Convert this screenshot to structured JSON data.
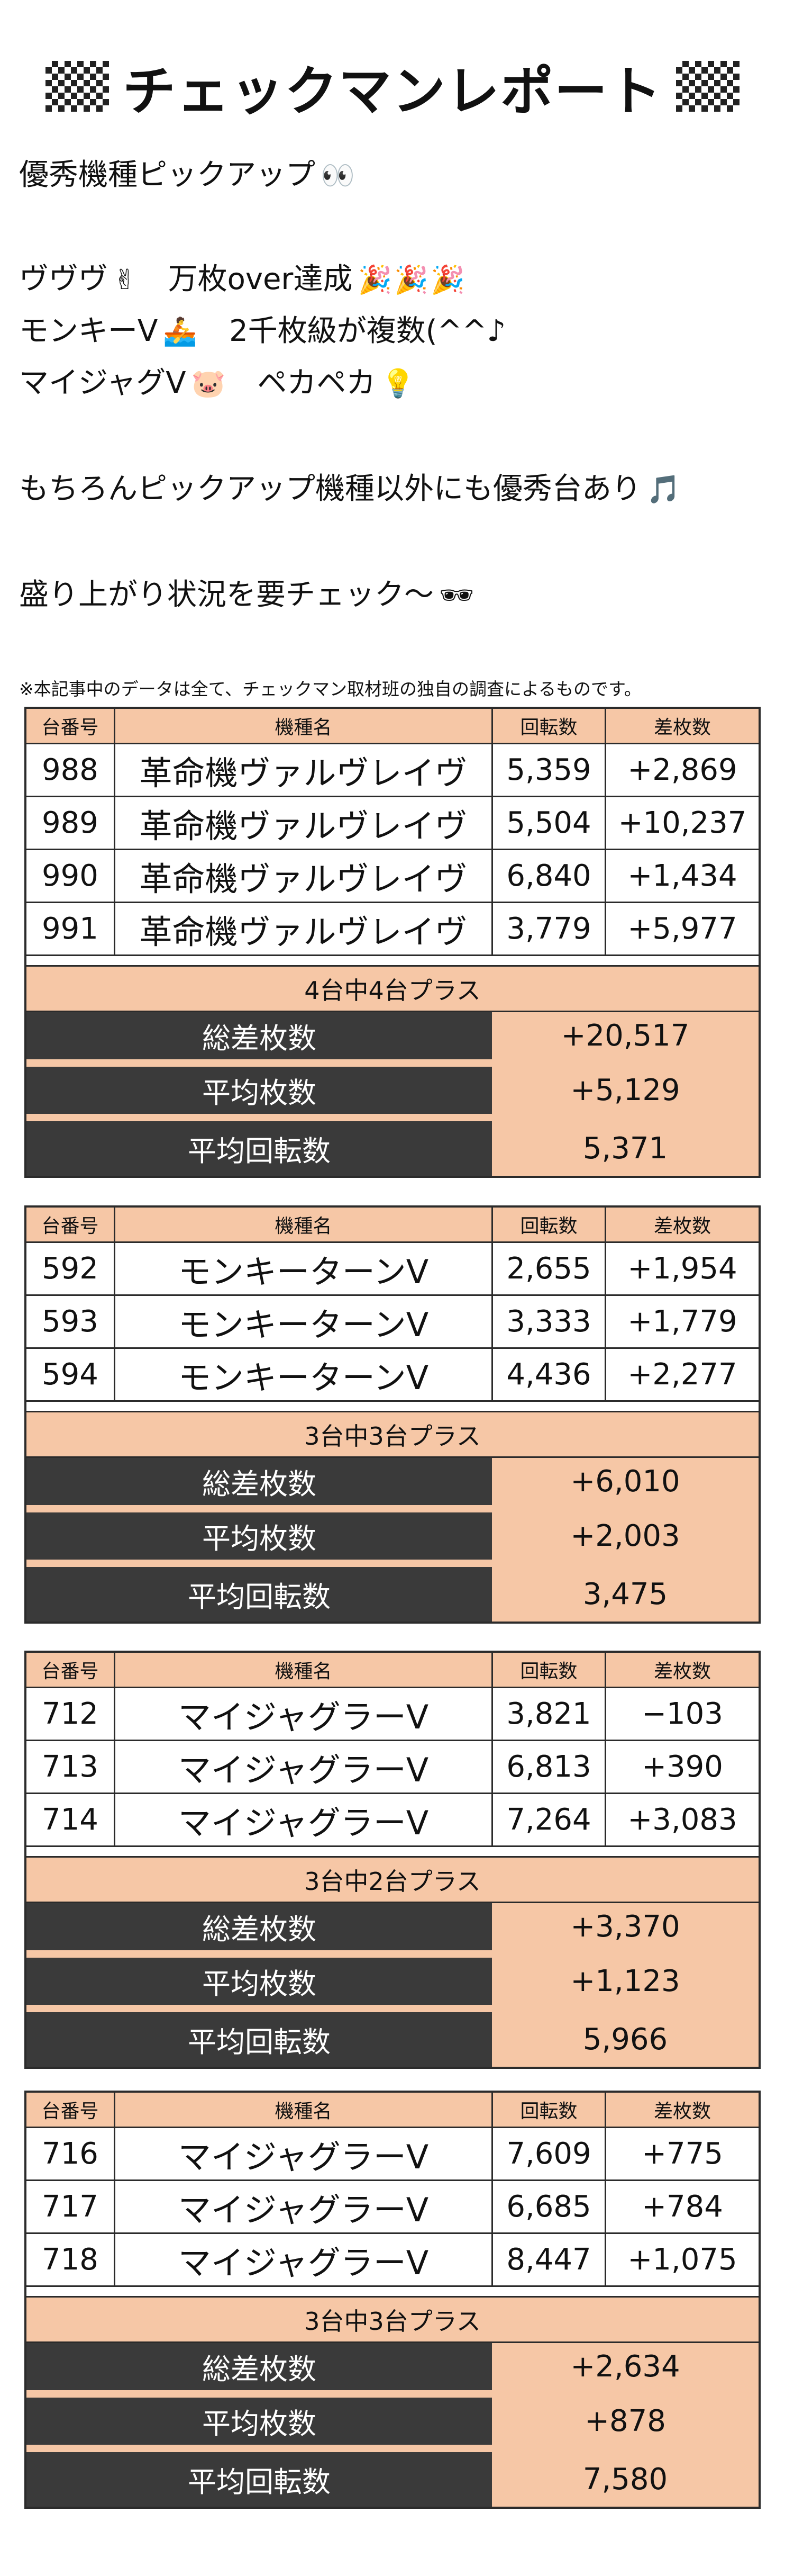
{
  "header": {
    "title": "チェックマンレポート",
    "flag_icon": "checkered-flag"
  },
  "intro": {
    "pickup_heading": "優秀機種ピックアップ",
    "pickup_emoji": "👀",
    "line_vuvuvu": "ヴヴヴ",
    "line_vuvuvu_emoji": "✌",
    "line_vuvuvu_text": "万枚over達成",
    "party_emoji": "🎉",
    "line_monkey": "モンキーV",
    "line_monkey_emoji": "🚣",
    "line_monkey_text": "2千枚級が複数(^^♪",
    "line_myjug": "マイジャグV",
    "line_myjug_emoji": "🐷",
    "line_myjug_text": "ペカペカ",
    "line_myjug_emoji2": "💡",
    "other_text": "もちろんピックアップ機種以外にも優秀台あり",
    "other_emoji": "🎵",
    "check_text": "盛り上がり状況を要チェック〜",
    "check_emoji": "🕶"
  },
  "disclaimer": "※本記事中のデータは全て、チェックマン取材班の独自の調査によるものです。",
  "columns": {
    "machine_no": "台番号",
    "model": "機種名",
    "spins": "回転数",
    "diff": "差枚数"
  },
  "stat_labels": {
    "total": "総差枚数",
    "average": "平均枚数",
    "avg_spins": "平均回転数"
  },
  "groups": [
    {
      "rows": [
        {
          "no": "988",
          "model": "革命機ヴァルヴレイヴ",
          "spins": "5,359",
          "diff": "+2,869"
        },
        {
          "no": "989",
          "model": "革命機ヴァルヴレイヴ",
          "spins": "5,504",
          "diff": "+10,237"
        },
        {
          "no": "990",
          "model": "革命機ヴァルヴレイヴ",
          "spins": "6,840",
          "diff": "+1,434"
        },
        {
          "no": "991",
          "model": "革命機ヴァルヴレイヴ",
          "spins": "3,779",
          "diff": "+5,977"
        }
      ],
      "summary": "4台中4台プラス",
      "total": "+20,517",
      "average": "+5,129",
      "avg_spins": "5,371"
    },
    {
      "rows": [
        {
          "no": "592",
          "model": "モンキーターンV",
          "spins": "2,655",
          "diff": "+1,954"
        },
        {
          "no": "593",
          "model": "モンキーターンV",
          "spins": "3,333",
          "diff": "+1,779"
        },
        {
          "no": "594",
          "model": "モンキーターンV",
          "spins": "4,436",
          "diff": "+2,277"
        }
      ],
      "summary": "3台中3台プラス",
      "total": "+6,010",
      "average": "+2,003",
      "avg_spins": "3,475"
    },
    {
      "rows": [
        {
          "no": "712",
          "model": "マイジャグラーV",
          "spins": "3,821",
          "diff": "−103"
        },
        {
          "no": "713",
          "model": "マイジャグラーV",
          "spins": "6,813",
          "diff": "+390"
        },
        {
          "no": "714",
          "model": "マイジャグラーV",
          "spins": "7,264",
          "diff": "+3,083"
        }
      ],
      "summary": "3台中2台プラス",
      "total": "+3,370",
      "average": "+1,123",
      "avg_spins": "5,966"
    },
    {
      "rows": [
        {
          "no": "716",
          "model": "マイジャグラーV",
          "spins": "7,609",
          "diff": "+775"
        },
        {
          "no": "717",
          "model": "マイジャグラーV",
          "spins": "6,685",
          "diff": "+784"
        },
        {
          "no": "718",
          "model": "マイジャグラーV",
          "spins": "8,447",
          "diff": "+1,075"
        }
      ],
      "summary": "3台中3台プラス",
      "total": "+2,634",
      "average": "+878",
      "avg_spins": "7,580"
    }
  ]
}
